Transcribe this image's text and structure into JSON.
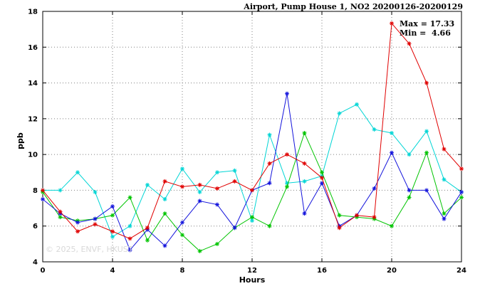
{
  "title": "Airport, Pump House 1, NO2 20200126-20200129",
  "annotation": {
    "max_label": "Max = 17.33",
    "min_label": "Min =  4.66"
  },
  "watermark": "© 2025, ENVF, HKUST",
  "chart_data": {
    "type": "line",
    "title": "Airport, Pump House 1, NO2 20200126-20200129",
    "xlabel": "Hours",
    "ylabel": "ppb",
    "xlim": [
      0,
      24
    ],
    "ylim": [
      4,
      18
    ],
    "xticks": [
      0,
      4,
      8,
      12,
      16,
      20,
      24
    ],
    "yticks": [
      4,
      6,
      8,
      10,
      12,
      14,
      16,
      18
    ],
    "grid": true,
    "legend_position": "none",
    "marker": "asterisk",
    "max": 17.33,
    "min": 4.66,
    "x": [
      0,
      1,
      2,
      3,
      4,
      5,
      6,
      7,
      8,
      9,
      10,
      11,
      12,
      13,
      14,
      15,
      16,
      17,
      18,
      19,
      20,
      21,
      22,
      23,
      24
    ],
    "series": [
      {
        "name": "cyan",
        "color": "#00d5d5",
        "values": [
          8.0,
          8.0,
          9.0,
          7.9,
          5.4,
          6.0,
          8.3,
          7.5,
          9.2,
          7.9,
          9.0,
          9.1,
          6.3,
          11.1,
          8.4,
          8.5,
          8.8,
          12.3,
          12.8,
          11.4,
          11.2,
          10.0,
          11.3,
          8.6,
          7.9
        ]
      },
      {
        "name": "green",
        "color": "#00c400",
        "values": [
          7.9,
          6.5,
          6.3,
          6.4,
          6.6,
          7.6,
          5.2,
          6.7,
          5.5,
          4.6,
          5.0,
          5.9,
          6.5,
          6.0,
          8.2,
          11.2,
          9.0,
          6.6,
          6.5,
          6.4,
          6.0,
          7.6,
          10.1,
          6.7,
          7.6
        ]
      },
      {
        "name": "blue",
        "color": "#1414dc",
        "values": [
          7.5,
          6.7,
          6.2,
          6.4,
          7.1,
          4.66,
          5.8,
          4.9,
          6.2,
          7.4,
          7.2,
          5.9,
          8.0,
          8.4,
          13.4,
          6.7,
          8.4,
          6.0,
          6.6,
          8.1,
          10.1,
          8.0,
          8.0,
          6.4,
          7.9
        ]
      },
      {
        "name": "red",
        "color": "#e00000",
        "values": [
          8.0,
          6.8,
          5.7,
          6.1,
          5.7,
          5.3,
          5.9,
          8.5,
          8.2,
          8.3,
          8.1,
          8.5,
          8.0,
          9.5,
          10.0,
          9.5,
          8.7,
          5.9,
          6.6,
          6.5,
          17.33,
          16.2,
          14.0,
          10.3,
          9.2
        ]
      }
    ]
  }
}
